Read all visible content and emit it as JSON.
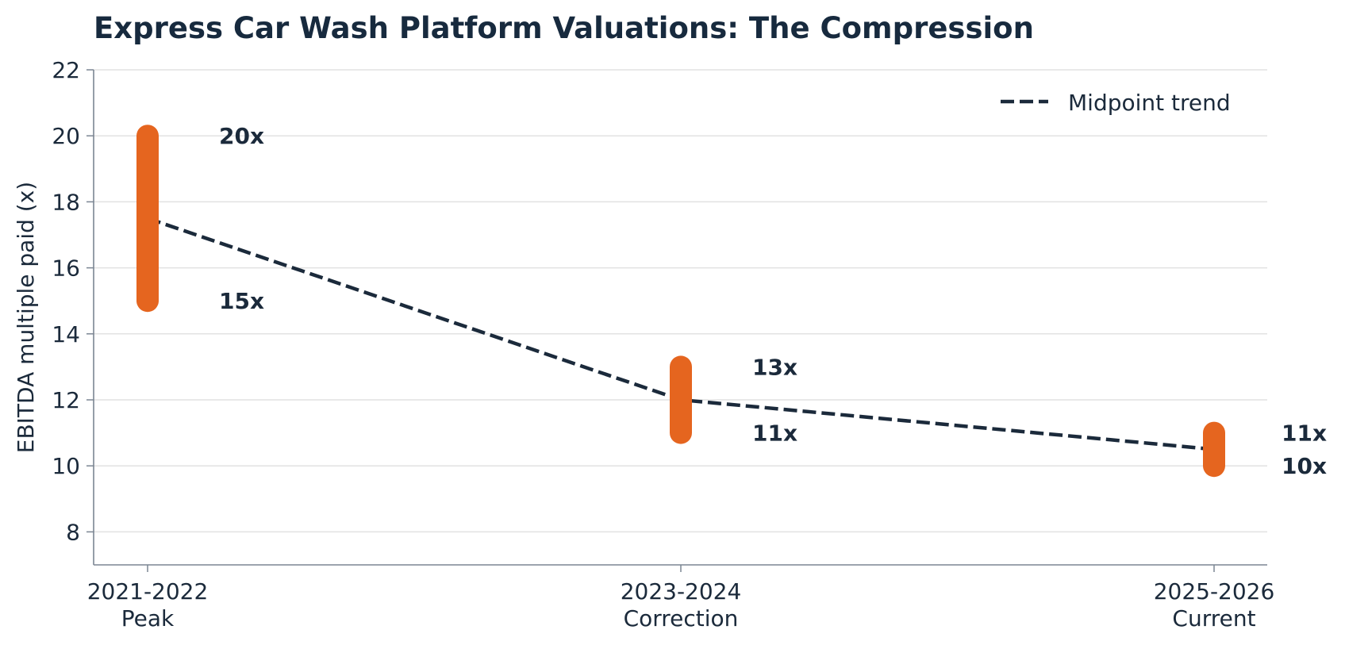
{
  "chart_data": {
    "type": "range",
    "title": "Express Car Wash Platform Valuations: The Compression",
    "xlabel": "",
    "ylabel": "EBITDA multiple paid (x)",
    "ylim": [
      7,
      22
    ],
    "yticks": [
      8,
      10,
      12,
      14,
      16,
      18,
      20,
      22
    ],
    "grid": true,
    "legend_position": "top-right",
    "categories": [
      {
        "line1": "2021-2022",
        "line2": "Peak"
      },
      {
        "line1": "2023-2024",
        "line2": "Correction"
      },
      {
        "line1": "2025-2026",
        "line2": "Current"
      }
    ],
    "ranges": [
      {
        "low": 15,
        "high": 20,
        "low_label": "15x",
        "high_label": "20x"
      },
      {
        "low": 11,
        "high": 13,
        "low_label": "11x",
        "high_label": "13x"
      },
      {
        "low": 10,
        "high": 11,
        "low_label": "10x",
        "high_label": "11x"
      }
    ],
    "series": [
      {
        "name": "Midpoint trend",
        "style": "dashed",
        "values": [
          17.5,
          12,
          10.5
        ]
      }
    ],
    "colors": {
      "range_bar": "#e5651f",
      "trend_line": "#1b2a3b",
      "grid": "#e2e2e2",
      "axis": "#7b8693"
    }
  }
}
